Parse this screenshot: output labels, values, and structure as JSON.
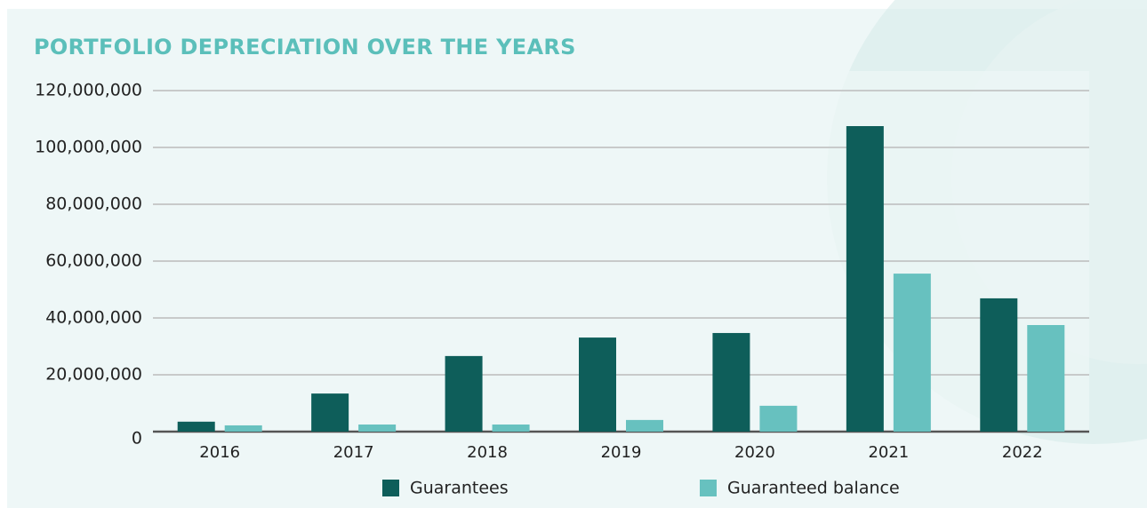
{
  "chart_data": {
    "type": "bar",
    "title": "PORTFOLIO DEPRECIATION OVER THE YEARS",
    "categories": [
      "2016",
      "2017",
      "2018",
      "2019",
      "2020",
      "2021",
      "2022"
    ],
    "series": [
      {
        "name": "Guarantees",
        "color": "#0e5e5a",
        "values": [
          3500000,
          13400000,
          26600000,
          33100000,
          34700000,
          107500000,
          46900000
        ]
      },
      {
        "name": "Guaranteed balance",
        "color": "#67c1bf",
        "values": [
          2200000,
          2500000,
          2500000,
          4100000,
          9100000,
          55600000,
          37500000
        ]
      }
    ],
    "ylim": [
      0,
      120000000
    ],
    "yticks": [
      0,
      {
        "value": 20000000,
        "label": "20,000,000"
      },
      {
        "value": 40000000,
        "label": "40,000,000"
      },
      {
        "value": 60000000,
        "label": "60,000,000"
      },
      {
        "value": 80000000,
        "label": "80,000,000"
      },
      {
        "value": 100000000,
        "label": "100,000,000"
      },
      {
        "value": 120000000,
        "label": "120,000,000"
      }
    ],
    "grid": true,
    "legend": "bottom"
  }
}
